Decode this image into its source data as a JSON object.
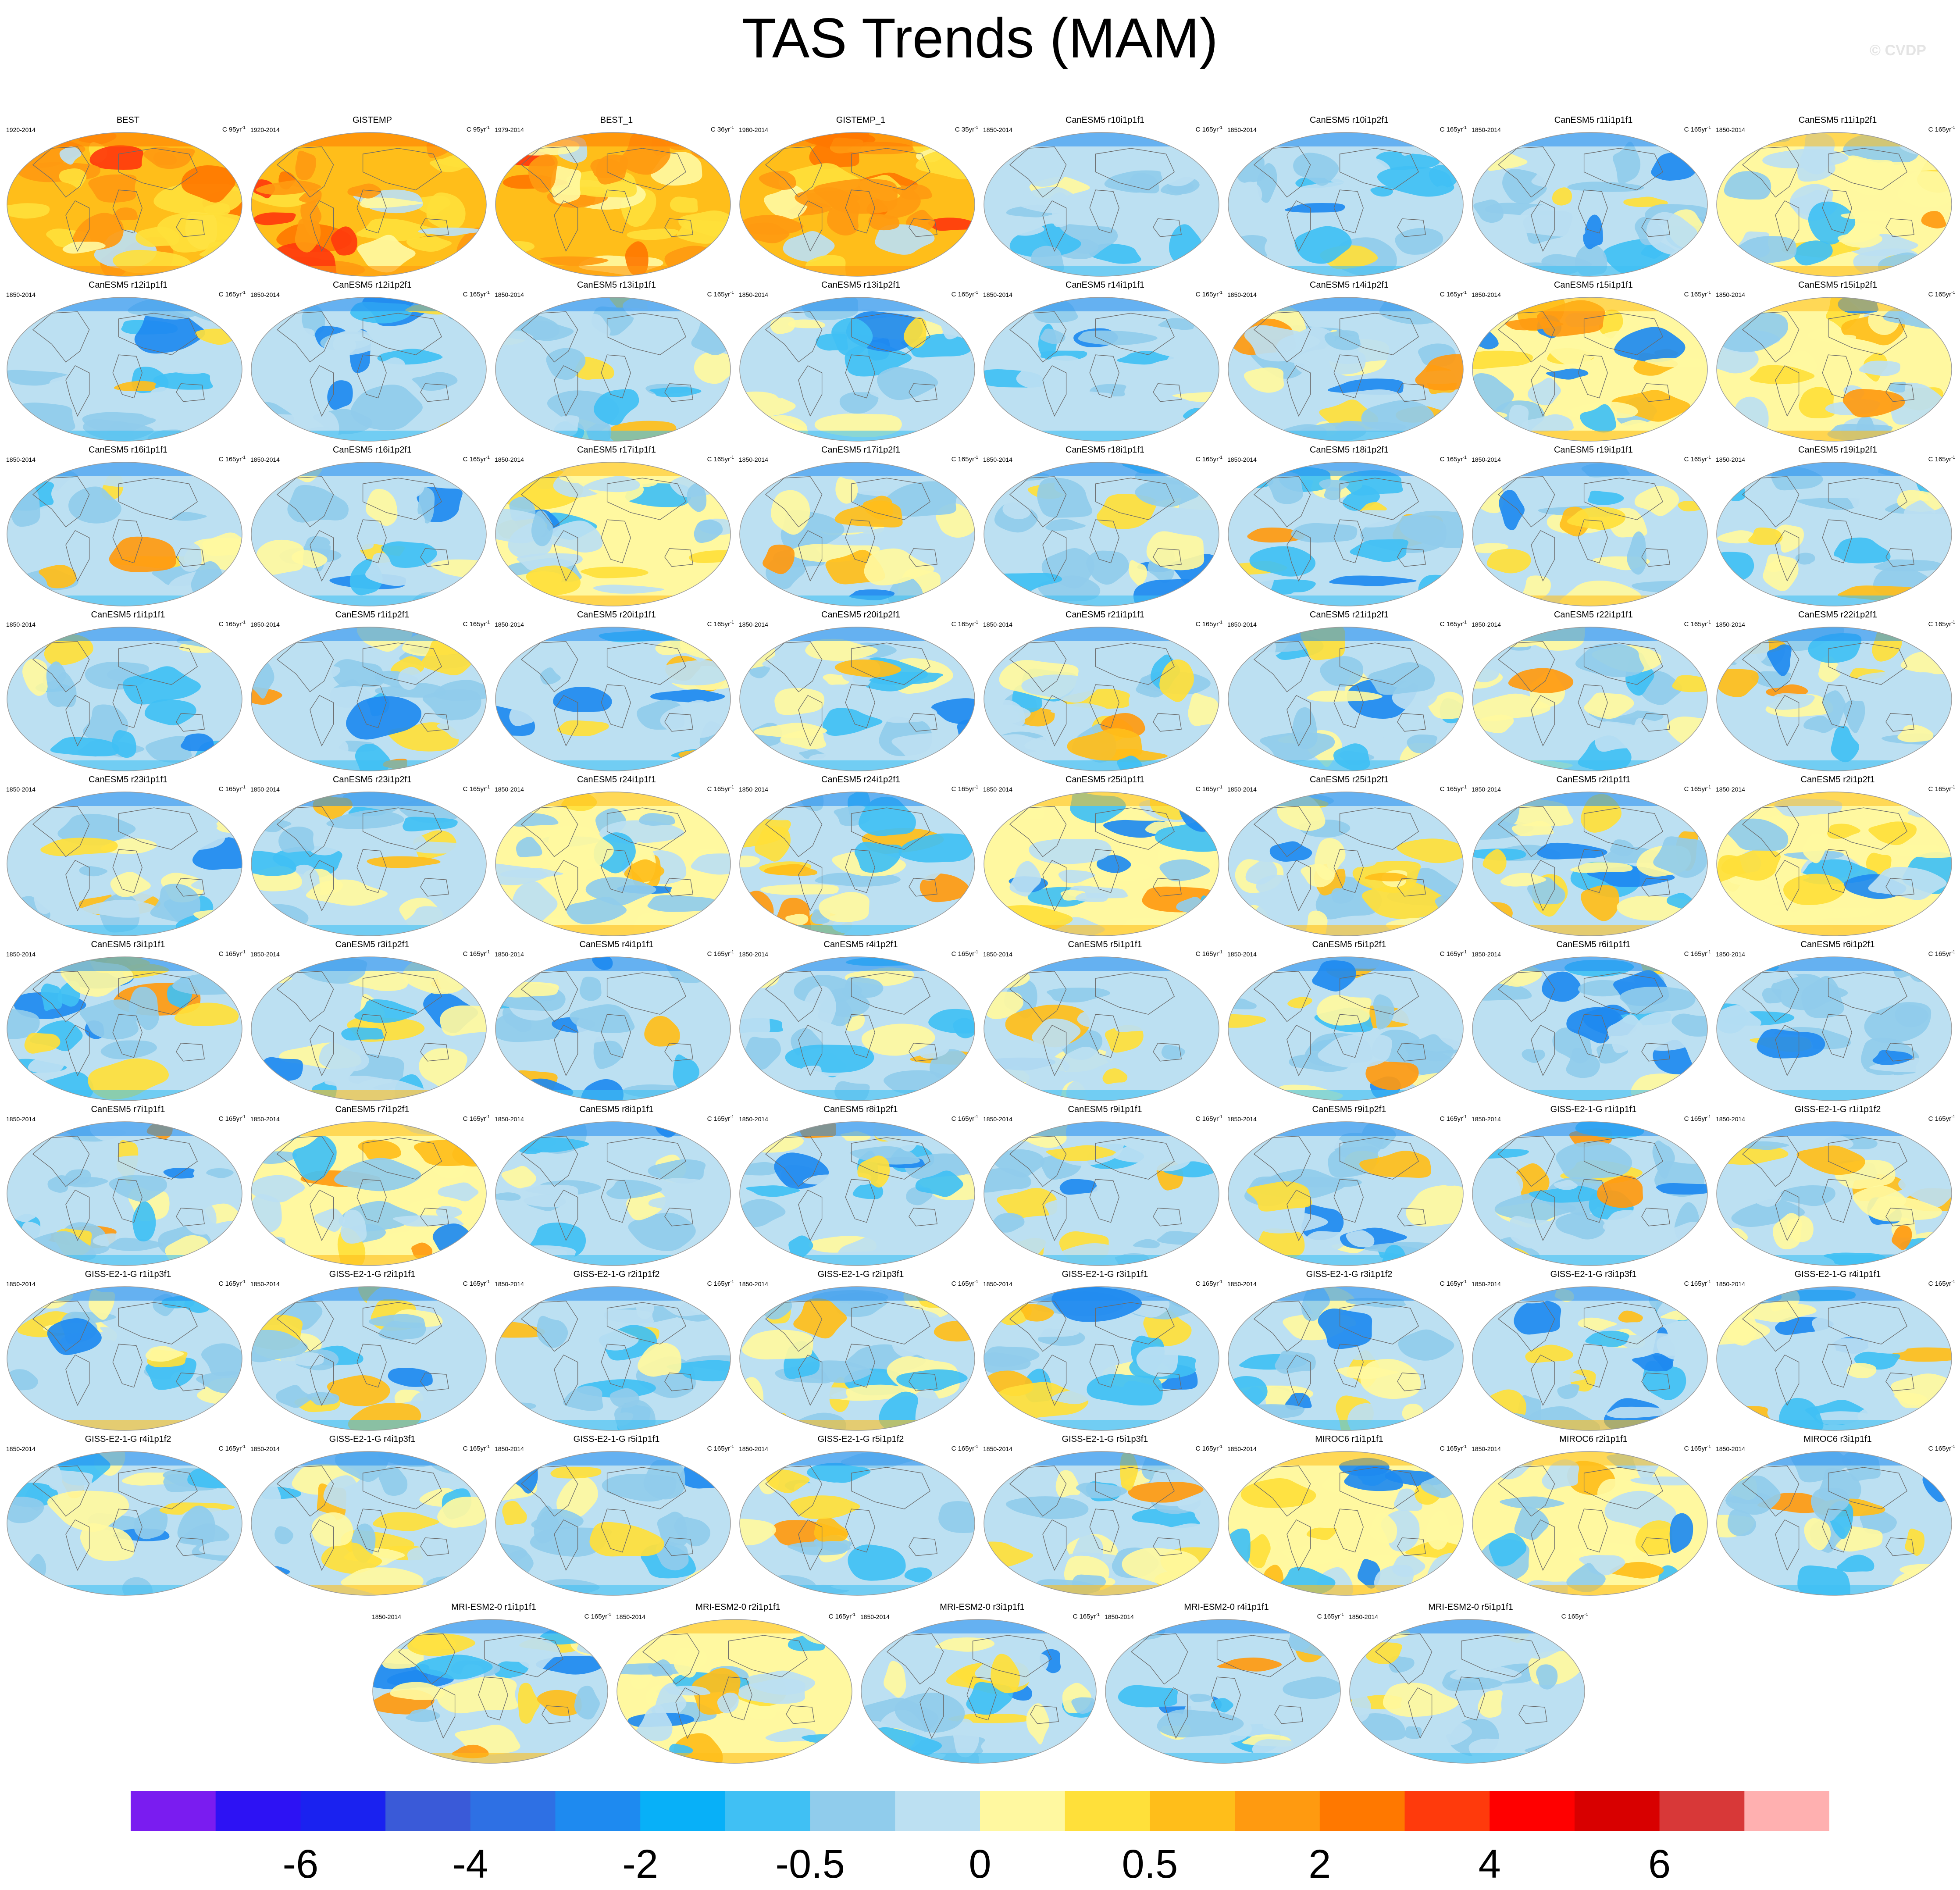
{
  "title": "TAS Trends (MAM)",
  "watermark": "© CVDP",
  "colorbar": {
    "colors": [
      "#7a1cf0",
      "#2d12f4",
      "#1a22f0",
      "#3a5ad8",
      "#2e70e4",
      "#1e8af0",
      "#08b0f8",
      "#40c0f4",
      "#90ccec",
      "#bce0f2",
      "#fff8a0",
      "#ffe03a",
      "#ffbe1a",
      "#ff9a10",
      "#ff7800",
      "#ff3a0c",
      "#ff0000",
      "#d80000",
      "#d83838",
      "#ffb0b0"
    ],
    "tick_labels": [
      "-6",
      "-4",
      "-2",
      "-0.5",
      "0",
      "0.5",
      "2",
      "4",
      "6"
    ],
    "tick_boundaries": [
      2,
      4,
      6,
      8,
      10,
      12,
      14,
      16,
      18
    ]
  },
  "chart_data": {
    "type": "heatmap",
    "title": "TAS Trends (MAM)",
    "units_template": "C {n}yr",
    "panels": [
      {
        "name": "BEST",
        "period": "1920-2014",
        "trend_years": "95",
        "warm_level": 0.95
      },
      {
        "name": "GISTEMP",
        "period": "1920-2014",
        "trend_years": "95",
        "warm_level": 0.95
      },
      {
        "name": "BEST_1",
        "period": "1979-2014",
        "trend_years": "36",
        "warm_level": 0.8
      },
      {
        "name": "GISTEMP_1",
        "period": "1980-2014",
        "trend_years": "35",
        "warm_level": 0.8
      },
      {
        "name": "CanESM5 r10i1p1f1",
        "period": "1850-2014",
        "trend_years": "165",
        "warm_level": 0.12
      },
      {
        "name": "CanESM5 r10i1p2f1",
        "period": "1850-2014",
        "trend_years": "165",
        "warm_level": 0.12
      },
      {
        "name": "CanESM5 r11i1p1f1",
        "period": "1850-2014",
        "trend_years": "165",
        "warm_level": 0.08
      },
      {
        "name": "CanESM5 r11i1p2f1",
        "period": "1850-2014",
        "trend_years": "165",
        "warm_level": 0.55
      },
      {
        "name": "CanESM5 r12i1p1f1",
        "period": "1850-2014",
        "trend_years": "165",
        "warm_level": 0.15
      },
      {
        "name": "CanESM5 r12i1p2f1",
        "period": "1850-2014",
        "trend_years": "165",
        "warm_level": 0.12
      },
      {
        "name": "CanESM5 r13i1p1f1",
        "period": "1850-2014",
        "trend_years": "165",
        "warm_level": 0.4
      },
      {
        "name": "CanESM5 r13i1p2f1",
        "period": "1850-2014",
        "trend_years": "165",
        "warm_level": 0.4
      },
      {
        "name": "CanESM5 r14i1p1f1",
        "period": "1850-2014",
        "trend_years": "165",
        "warm_level": 0.2
      },
      {
        "name": "CanESM5 r14i1p2f1",
        "period": "1850-2014",
        "trend_years": "165",
        "warm_level": 0.4
      },
      {
        "name": "CanESM5 r15i1p1f1",
        "period": "1850-2014",
        "trend_years": "165",
        "warm_level": 0.55
      },
      {
        "name": "CanESM5 r15i1p2f1",
        "period": "1850-2014",
        "trend_years": "165",
        "warm_level": 0.5
      },
      {
        "name": "CanESM5 r16i1p1f1",
        "period": "1850-2014",
        "trend_years": "165",
        "warm_level": 0.3
      },
      {
        "name": "CanESM5 r16i1p2f1",
        "period": "1850-2014",
        "trend_years": "165",
        "warm_level": 0.3
      },
      {
        "name": "CanESM5 r17i1p1f1",
        "period": "1850-2014",
        "trend_years": "165",
        "warm_level": 0.5
      },
      {
        "name": "CanESM5 r17i1p2f1",
        "period": "1850-2014",
        "trend_years": "165",
        "warm_level": 0.4
      },
      {
        "name": "CanESM5 r18i1p1f1",
        "period": "1850-2014",
        "trend_years": "165",
        "warm_level": 0.2
      },
      {
        "name": "CanESM5 r18i1p2f1",
        "period": "1850-2014",
        "trend_years": "165",
        "warm_level": 0.2
      },
      {
        "name": "CanESM5 r19i1p1f1",
        "period": "1850-2014",
        "trend_years": "165",
        "warm_level": 0.45
      },
      {
        "name": "CanESM5 r19i1p2f1",
        "period": "1850-2014",
        "trend_years": "165",
        "warm_level": 0.3
      },
      {
        "name": "CanESM5 r1i1p1f1",
        "period": "1850-2014",
        "trend_years": "165",
        "warm_level": 0.2
      },
      {
        "name": "CanESM5 r1i1p2f1",
        "period": "1850-2014",
        "trend_years": "165",
        "warm_level": 0.4
      },
      {
        "name": "CanESM5 r20i1p1f1",
        "period": "1850-2014",
        "trend_years": "165",
        "warm_level": 0.3
      },
      {
        "name": "CanESM5 r20i1p2f1",
        "period": "1850-2014",
        "trend_years": "165",
        "warm_level": 0.35
      },
      {
        "name": "CanESM5 r21i1p1f1",
        "period": "1850-2014",
        "trend_years": "165",
        "warm_level": 0.3
      },
      {
        "name": "CanESM5 r21i1p2f1",
        "period": "1850-2014",
        "trend_years": "165",
        "warm_level": 0.3
      },
      {
        "name": "CanESM5 r22i1p1f1",
        "period": "1850-2014",
        "trend_years": "165",
        "warm_level": 0.4
      },
      {
        "name": "CanESM5 r22i1p2f1",
        "period": "1850-2014",
        "trend_years": "165",
        "warm_level": 0.3
      },
      {
        "name": "CanESM5 r23i1p1f1",
        "period": "1850-2014",
        "trend_years": "165",
        "warm_level": 0.2
      },
      {
        "name": "CanESM5 r23i1p2f1",
        "period": "1850-2014",
        "trend_years": "165",
        "warm_level": 0.4
      },
      {
        "name": "CanESM5 r24i1p1f1",
        "period": "1850-2014",
        "trend_years": "165",
        "warm_level": 0.55
      },
      {
        "name": "CanESM5 r24i1p2f1",
        "period": "1850-2014",
        "trend_years": "165",
        "warm_level": 0.4
      },
      {
        "name": "CanESM5 r25i1p1f1",
        "period": "1850-2014",
        "trend_years": "165",
        "warm_level": 0.5
      },
      {
        "name": "CanESM5 r25i1p2f1",
        "period": "1850-2014",
        "trend_years": "165",
        "warm_level": 0.45
      },
      {
        "name": "CanESM5 r2i1p1f1",
        "period": "1850-2014",
        "trend_years": "165",
        "warm_level": 0.45
      },
      {
        "name": "CanESM5 r2i1p2f1",
        "period": "1850-2014",
        "trend_years": "165",
        "warm_level": 0.5
      },
      {
        "name": "CanESM5 r3i1p1f1",
        "period": "1850-2014",
        "trend_years": "165",
        "warm_level": 0.25
      },
      {
        "name": "CanESM5 r3i1p2f1",
        "period": "1850-2014",
        "trend_years": "165",
        "warm_level": 0.45
      },
      {
        "name": "CanESM5 r4i1p1f1",
        "period": "1850-2014",
        "trend_years": "165",
        "warm_level": 0.15
      },
      {
        "name": "CanESM5 r4i1p2f1",
        "period": "1850-2014",
        "trend_years": "165",
        "warm_level": 0.15
      },
      {
        "name": "CanESM5 r5i1p1f1",
        "period": "1850-2014",
        "trend_years": "165",
        "warm_level": 0.3
      },
      {
        "name": "CanESM5 r5i1p2f1",
        "period": "1850-2014",
        "trend_years": "165",
        "warm_level": 0.3
      },
      {
        "name": "CanESM5 r6i1p1f1",
        "period": "1850-2014",
        "trend_years": "165",
        "warm_level": 0.25
      },
      {
        "name": "CanESM5 r6i1p2f1",
        "period": "1850-2014",
        "trend_years": "165",
        "warm_level": 0.2
      },
      {
        "name": "CanESM5 r7i1p1f1",
        "period": "1850-2014",
        "trend_years": "165",
        "warm_level": 0.35
      },
      {
        "name": "CanESM5 r7i1p2f1",
        "period": "1850-2014",
        "trend_years": "165",
        "warm_level": 0.5
      },
      {
        "name": "CanESM5 r8i1p1f1",
        "period": "1850-2014",
        "trend_years": "165",
        "warm_level": 0.12
      },
      {
        "name": "CanESM5 r8i1p2f1",
        "period": "1850-2014",
        "trend_years": "165",
        "warm_level": 0.35
      },
      {
        "name": "CanESM5 r9i1p1f1",
        "period": "1850-2014",
        "trend_years": "165",
        "warm_level": 0.3
      },
      {
        "name": "CanESM5 r9i1p2f1",
        "period": "1850-2014",
        "trend_years": "165",
        "warm_level": 0.15
      },
      {
        "name": "GISS-E2-1-G r1i1p1f1",
        "period": "1850-2014",
        "trend_years": "165",
        "warm_level": 0.35
      },
      {
        "name": "GISS-E2-1-G r1i1p1f2",
        "period": "1850-2014",
        "trend_years": "165",
        "warm_level": 0.25
      },
      {
        "name": "GISS-E2-1-G r1i1p3f1",
        "period": "1850-2014",
        "trend_years": "165",
        "warm_level": 0.45
      },
      {
        "name": "GISS-E2-1-G r2i1p1f1",
        "period": "1850-2014",
        "trend_years": "165",
        "warm_level": 0.4
      },
      {
        "name": "GISS-E2-1-G r2i1p1f2",
        "period": "1850-2014",
        "trend_years": "165",
        "warm_level": 0.15
      },
      {
        "name": "GISS-E2-1-G r2i1p3f1",
        "period": "1850-2014",
        "trend_years": "165",
        "warm_level": 0.45
      },
      {
        "name": "GISS-E2-1-G r3i1p1f1",
        "period": "1850-2014",
        "trend_years": "165",
        "warm_level": 0.35
      },
      {
        "name": "GISS-E2-1-G r3i1p1f2",
        "period": "1850-2014",
        "trend_years": "165",
        "warm_level": 0.4
      },
      {
        "name": "GISS-E2-1-G r3i1p3f1",
        "period": "1850-2014",
        "trend_years": "165",
        "warm_level": 0.45
      },
      {
        "name": "GISS-E2-1-G r4i1p1f1",
        "period": "1850-2014",
        "trend_years": "165",
        "warm_level": 0.35
      },
      {
        "name": "GISS-E2-1-G r4i1p1f2",
        "period": "1850-2014",
        "trend_years": "165",
        "warm_level": 0.2
      },
      {
        "name": "GISS-E2-1-G r4i1p3f1",
        "period": "1850-2014",
        "trend_years": "165",
        "warm_level": 0.45
      },
      {
        "name": "GISS-E2-1-G r5i1p1f1",
        "period": "1850-2014",
        "trend_years": "165",
        "warm_level": 0.4
      },
      {
        "name": "GISS-E2-1-G r5i1p1f2",
        "period": "1850-2014",
        "trend_years": "165",
        "warm_level": 0.4
      },
      {
        "name": "GISS-E2-1-G r5i1p3f1",
        "period": "1850-2014",
        "trend_years": "165",
        "warm_level": 0.45
      },
      {
        "name": "MIROC6 r1i1p1f1",
        "period": "1850-2014",
        "trend_years": "165",
        "warm_level": 0.5
      },
      {
        "name": "MIROC6 r2i1p1f1",
        "period": "1850-2014",
        "trend_years": "165",
        "warm_level": 0.5
      },
      {
        "name": "MIROC6 r3i1p1f1",
        "period": "1850-2014",
        "trend_years": "165",
        "warm_level": 0.3
      },
      {
        "name": "MRI-ESM2-0 r1i1p1f1",
        "period": "1850-2014",
        "trend_years": "165",
        "warm_level": 0.45
      },
      {
        "name": "MRI-ESM2-0 r2i1p1f1",
        "period": "1850-2014",
        "trend_years": "165",
        "warm_level": 0.5
      },
      {
        "name": "MRI-ESM2-0 r3i1p1f1",
        "period": "1850-2014",
        "trend_years": "165",
        "warm_level": 0.4
      },
      {
        "name": "MRI-ESM2-0 r4i1p1f1",
        "period": "1850-2014",
        "trend_years": "165",
        "warm_level": 0.2
      },
      {
        "name": "MRI-ESM2-0 r5i1p1f1",
        "period": "1850-2014",
        "trend_years": "165",
        "warm_level": 0.35
      }
    ]
  }
}
